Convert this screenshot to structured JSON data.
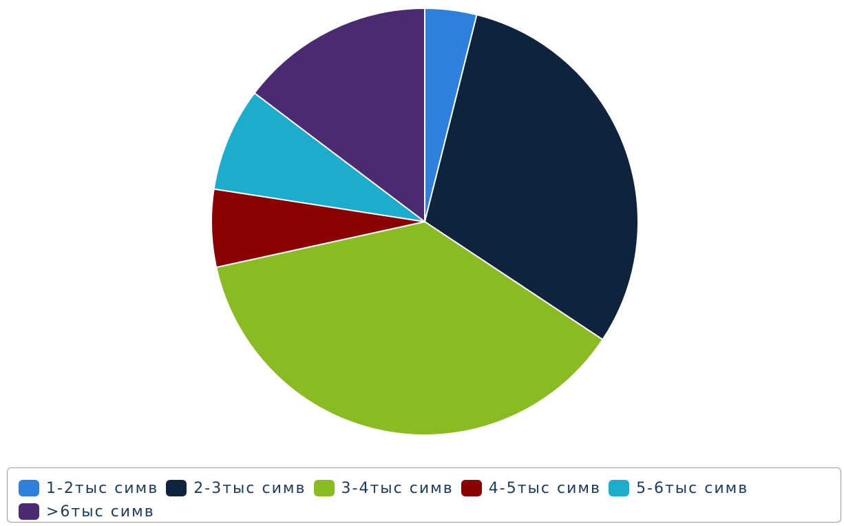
{
  "chart_data": {
    "type": "pie",
    "title": "",
    "start_angle_deg": 0,
    "direction": "clockwise",
    "slices": [
      {
        "label": "1-2тыс симв",
        "value": 4,
        "color": "#2f80dd"
      },
      {
        "label": "2-3тыс симв",
        "value": 31,
        "color": "#0f233c"
      },
      {
        "label": "3-4тыс симв",
        "value": 38,
        "color": "#8bbb23"
      },
      {
        "label": "4-5тыс симв",
        "value": 6,
        "color": "#8b0000"
      },
      {
        "label": "5-6тыс симв",
        "value": 8,
        "color": "#1bacce"
      },
      {
        "label": ">6тыс симв",
        "value": 15,
        "color": "#4a2a70"
      }
    ],
    "legend_position": "bottom"
  }
}
